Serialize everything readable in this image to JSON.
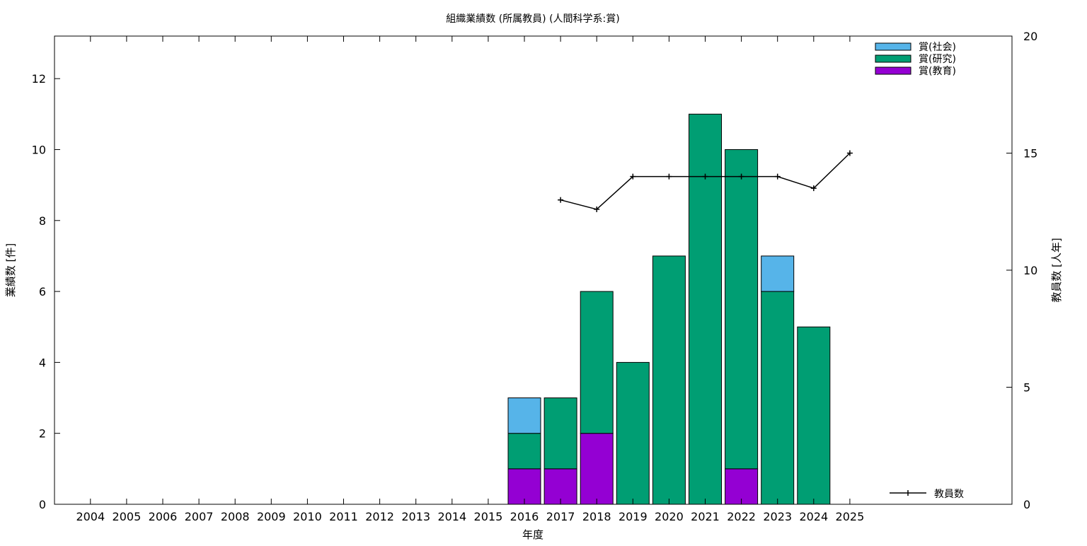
{
  "chart_data": {
    "type": "bar",
    "title": "組織業績数 (所属教員) (人間科学系:賞)",
    "xlabel": "年度",
    "ylabel": "業績数 [件]",
    "y2label": "教員数 [人年]",
    "categories": [
      "2004",
      "2005",
      "2006",
      "2007",
      "2008",
      "2009",
      "2010",
      "2011",
      "2012",
      "2013",
      "2014",
      "2015",
      "2016",
      "2017",
      "2018",
      "2019",
      "2020",
      "2021",
      "2022",
      "2023",
      "2024",
      "2025"
    ],
    "ylim": [
      0,
      13.2
    ],
    "y2lim": [
      0,
      20
    ],
    "yticks": [
      0,
      2,
      4,
      6,
      8,
      10,
      12
    ],
    "y2ticks": [
      0,
      5,
      10,
      15,
      20
    ],
    "stacked": true,
    "grid": false,
    "legend_position": "top-right",
    "series": [
      {
        "name": "賞(教育)",
        "color": "#9400d3",
        "values": [
          0,
          0,
          0,
          0,
          0,
          0,
          0,
          0,
          0,
          0,
          0,
          0,
          1,
          1,
          2,
          0,
          0,
          0,
          1,
          0,
          0,
          0
        ]
      },
      {
        "name": "賞(研究)",
        "color": "#009e73",
        "values": [
          0,
          0,
          0,
          0,
          0,
          0,
          0,
          0,
          0,
          0,
          0,
          0,
          1,
          2,
          4,
          4,
          7,
          11,
          9,
          6,
          5,
          0
        ]
      },
      {
        "name": "賞(社会)",
        "color": "#56b4e9",
        "values": [
          0,
          0,
          0,
          0,
          0,
          0,
          0,
          0,
          0,
          0,
          0,
          0,
          1,
          0,
          0,
          0,
          0,
          0,
          0,
          1,
          0,
          0
        ]
      }
    ],
    "line_series": {
      "name": "教員数",
      "axis": "y2",
      "color": "#000000",
      "x": [
        "2017",
        "2018",
        "2019",
        "2020",
        "2021",
        "2022",
        "2023",
        "2024",
        "2025"
      ],
      "values": [
        13.0,
        12.6,
        14.0,
        14.0,
        14.0,
        14.0,
        14.0,
        13.5,
        15.0
      ]
    }
  }
}
